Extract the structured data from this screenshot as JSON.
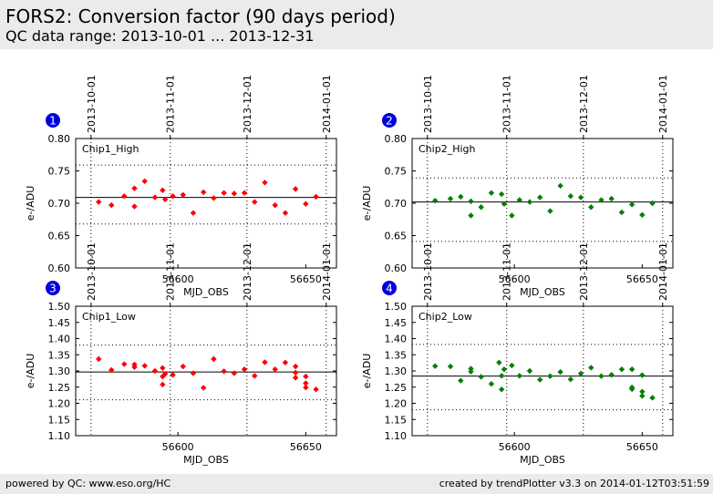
{
  "page": {
    "title": "FORS2: Conversion factor (90 days period)",
    "subtitle": "QC data range: 2013-10-01 ... 2013-12-31"
  },
  "footer": {
    "left": "powered by QC: www.eso.org/HC",
    "right": "created by trendPlotter v3.3 on 2014-01-12T03:51:59"
  },
  "colors": {
    "chip1": "#ff0000",
    "chip2": "#008000",
    "badge": "#0000dd"
  },
  "chart_data": [
    {
      "type": "scatter",
      "badge": "1",
      "panel_label": "Chip1_High",
      "xlabel": "MJD_OBS",
      "ylabel": "e-/ADU",
      "xlim": [
        56560,
        56662
      ],
      "ylim": [
        0.6,
        0.8
      ],
      "yticks": [
        0.6,
        0.65,
        0.7,
        0.75,
        0.8
      ],
      "ytick_labels": [
        "0.60",
        "0.65",
        "0.70",
        "0.75",
        "0.80"
      ],
      "xticks": [
        56600,
        56650
      ],
      "xtick_labels": [
        "56600",
        "56650"
      ],
      "date_ticks": [
        {
          "x": 56566,
          "label": "2013-10-01"
        },
        {
          "x": 56597,
          "label": "2013-11-01"
        },
        {
          "x": 56627,
          "label": "2013-12-01"
        },
        {
          "x": 56658,
          "label": "2014-01-01"
        }
      ],
      "mean": 0.709,
      "band": [
        0.668,
        0.759
      ],
      "color": "#ff0000",
      "points": [
        [
          56569,
          0.702
        ],
        [
          56574,
          0.697
        ],
        [
          56579,
          0.711
        ],
        [
          56583,
          0.695
        ],
        [
          56583,
          0.723
        ],
        [
          56587,
          0.734
        ],
        [
          56591,
          0.709
        ],
        [
          56594,
          0.72
        ],
        [
          56595,
          0.706
        ],
        [
          56598,
          0.711
        ],
        [
          56602,
          0.713
        ],
        [
          56606,
          0.685
        ],
        [
          56610,
          0.717
        ],
        [
          56614,
          0.708
        ],
        [
          56618,
          0.716
        ],
        [
          56622,
          0.715
        ],
        [
          56626,
          0.716
        ],
        [
          56630,
          0.702
        ],
        [
          56634,
          0.732
        ],
        [
          56638,
          0.697
        ],
        [
          56642,
          0.685
        ],
        [
          56646,
          0.722
        ],
        [
          56650,
          0.699
        ],
        [
          56654,
          0.71
        ]
      ]
    },
    {
      "type": "scatter",
      "badge": "2",
      "panel_label": "Chip2_High",
      "xlabel": "MJD_OBS",
      "ylabel": "e-/ADU",
      "xlim": [
        56560,
        56662
      ],
      "ylim": [
        0.6,
        0.8
      ],
      "yticks": [
        0.6,
        0.65,
        0.7,
        0.75,
        0.8
      ],
      "ytick_labels": [
        "0.60",
        "0.65",
        "0.70",
        "0.75",
        "0.80"
      ],
      "xticks": [
        56600,
        56650
      ],
      "xtick_labels": [
        "56600",
        "56650"
      ],
      "date_ticks": [
        {
          "x": 56566,
          "label": "2013-10-01"
        },
        {
          "x": 56597,
          "label": "2013-11-01"
        },
        {
          "x": 56627,
          "label": "2013-12-01"
        },
        {
          "x": 56658,
          "label": "2014-01-01"
        }
      ],
      "mean": 0.702,
      "band": [
        0.641,
        0.739
      ],
      "color": "#008000",
      "points": [
        [
          56569,
          0.704
        ],
        [
          56575,
          0.707
        ],
        [
          56579,
          0.71
        ],
        [
          56583,
          0.681
        ],
        [
          56583,
          0.703
        ],
        [
          56587,
          0.694
        ],
        [
          56591,
          0.716
        ],
        [
          56595,
          0.714
        ],
        [
          56596,
          0.699
        ],
        [
          56599,
          0.681
        ],
        [
          56602,
          0.705
        ],
        [
          56606,
          0.702
        ],
        [
          56610,
          0.709
        ],
        [
          56614,
          0.688
        ],
        [
          56618,
          0.727
        ],
        [
          56622,
          0.711
        ],
        [
          56626,
          0.709
        ],
        [
          56630,
          0.694
        ],
        [
          56634,
          0.705
        ],
        [
          56638,
          0.707
        ],
        [
          56642,
          0.686
        ],
        [
          56646,
          0.698
        ],
        [
          56650,
          0.682
        ],
        [
          56654,
          0.7
        ]
      ]
    },
    {
      "type": "scatter",
      "badge": "3",
      "panel_label": "Chip1_Low",
      "xlabel": "MJD_OBS",
      "ylabel": "e-/ADU",
      "xlim": [
        56560,
        56662
      ],
      "ylim": [
        1.1,
        1.5
      ],
      "yticks": [
        1.1,
        1.15,
        1.2,
        1.25,
        1.3,
        1.35,
        1.4,
        1.45,
        1.5
      ],
      "ytick_labels": [
        "1.10",
        "1.15",
        "1.20",
        "1.25",
        "1.30",
        "1.35",
        "1.40",
        "1.45",
        "1.50"
      ],
      "xticks": [
        56600,
        56650
      ],
      "xtick_labels": [
        "56600",
        "56650"
      ],
      "date_ticks": [
        {
          "x": 56566,
          "label": "2013-10-01"
        },
        {
          "x": 56597,
          "label": "2013-11-01"
        },
        {
          "x": 56627,
          "label": "2013-12-01"
        },
        {
          "x": 56658,
          "label": "2014-01-01"
        }
      ],
      "mean": 1.297,
      "band": [
        1.211,
        1.38
      ],
      "color": "#ff0000",
      "points": [
        [
          56569,
          1.337
        ],
        [
          56574,
          1.303
        ],
        [
          56579,
          1.321
        ],
        [
          56583,
          1.312
        ],
        [
          56583,
          1.32
        ],
        [
          56587,
          1.316
        ],
        [
          56591,
          1.3
        ],
        [
          56594,
          1.309
        ],
        [
          56594,
          1.283
        ],
        [
          56594,
          1.258
        ],
        [
          56595,
          1.291
        ],
        [
          56598,
          1.288
        ],
        [
          56602,
          1.314
        ],
        [
          56606,
          1.293
        ],
        [
          56610,
          1.248
        ],
        [
          56614,
          1.337
        ],
        [
          56618,
          1.299
        ],
        [
          56622,
          1.293
        ],
        [
          56626,
          1.305
        ],
        [
          56630,
          1.285
        ],
        [
          56634,
          1.327
        ],
        [
          56638,
          1.305
        ],
        [
          56642,
          1.326
        ],
        [
          56646,
          1.314
        ],
        [
          56646,
          1.295
        ],
        [
          56646,
          1.279
        ],
        [
          56650,
          1.283
        ],
        [
          56650,
          1.262
        ],
        [
          56650,
          1.249
        ],
        [
          56654,
          1.243
        ]
      ]
    },
    {
      "type": "scatter",
      "badge": "4",
      "panel_label": "Chip2_Low",
      "xlabel": "MJD_OBS",
      "ylabel": "e-/ADU",
      "xlim": [
        56560,
        56662
      ],
      "ylim": [
        1.1,
        1.5
      ],
      "yticks": [
        1.1,
        1.15,
        1.2,
        1.25,
        1.3,
        1.35,
        1.4,
        1.45,
        1.5
      ],
      "ytick_labels": [
        "1.10",
        "1.15",
        "1.20",
        "1.25",
        "1.30",
        "1.35",
        "1.40",
        "1.45",
        "1.50"
      ],
      "xticks": [
        56600,
        56650
      ],
      "xtick_labels": [
        "56600",
        "56650"
      ],
      "date_ticks": [
        {
          "x": 56566,
          "label": "2013-10-01"
        },
        {
          "x": 56597,
          "label": "2013-11-01"
        },
        {
          "x": 56627,
          "label": "2013-12-01"
        },
        {
          "x": 56658,
          "label": "2014-01-01"
        }
      ],
      "mean": 1.284,
      "band": [
        1.18,
        1.382
      ],
      "color": "#008000",
      "points": [
        [
          56569,
          1.315
        ],
        [
          56575,
          1.314
        ],
        [
          56579,
          1.27
        ],
        [
          56583,
          1.307
        ],
        [
          56583,
          1.298
        ],
        [
          56587,
          1.282
        ],
        [
          56591,
          1.26
        ],
        [
          56594,
          1.326
        ],
        [
          56595,
          1.285
        ],
        [
          56595,
          1.243
        ],
        [
          56596,
          1.305
        ],
        [
          56599,
          1.317
        ],
        [
          56602,
          1.285
        ],
        [
          56606,
          1.3
        ],
        [
          56610,
          1.273
        ],
        [
          56614,
          1.284
        ],
        [
          56618,
          1.297
        ],
        [
          56622,
          1.274
        ],
        [
          56626,
          1.292
        ],
        [
          56630,
          1.31
        ],
        [
          56634,
          1.284
        ],
        [
          56638,
          1.288
        ],
        [
          56642,
          1.305
        ],
        [
          56646,
          1.305
        ],
        [
          56646,
          1.249
        ],
        [
          56646,
          1.244
        ],
        [
          56650,
          1.287
        ],
        [
          56650,
          1.236
        ],
        [
          56650,
          1.223
        ],
        [
          56654,
          1.217
        ]
      ]
    }
  ]
}
